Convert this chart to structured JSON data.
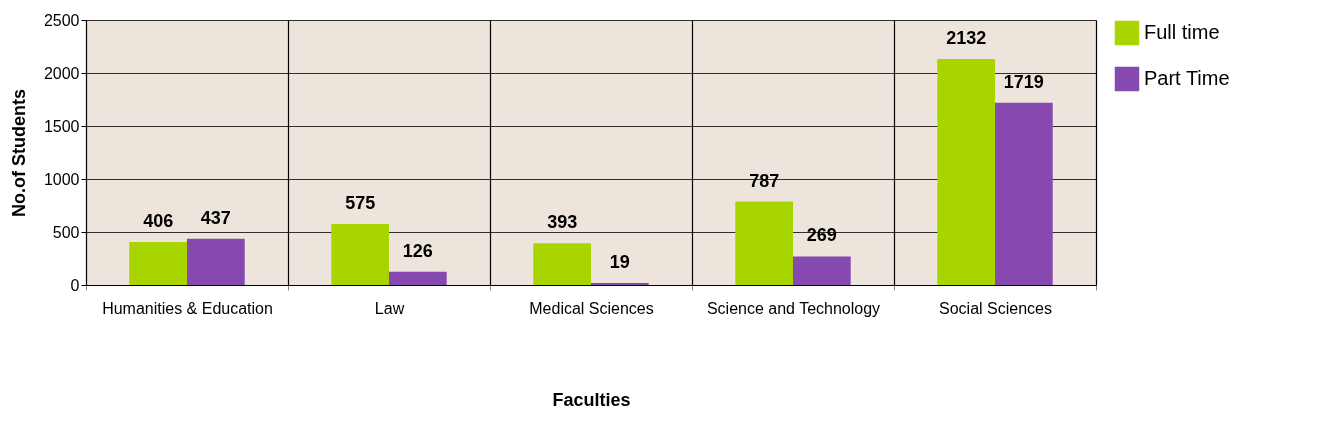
{
  "chart_data": {
    "type": "bar",
    "xlabel": "Faculties",
    "ylabel": "No.of Students",
    "categories": [
      "Humanities & Education",
      "Law",
      "Medical Sciences",
      "Science and Technology",
      "Social Sciences"
    ],
    "series": [
      {
        "name": "Full time",
        "color": "#a8d400",
        "values": [
          406,
          575,
          393,
          787,
          2132
        ]
      },
      {
        "name": "Part Time",
        "color": "#8549b0",
        "values": [
          437,
          126,
          19,
          269,
          1719
        ]
      }
    ],
    "ylim": [
      0,
      2500
    ],
    "yticks": [
      0,
      500,
      1000,
      1500,
      2000,
      2500
    ],
    "grid": true,
    "legend": "right",
    "data_labels": true
  }
}
